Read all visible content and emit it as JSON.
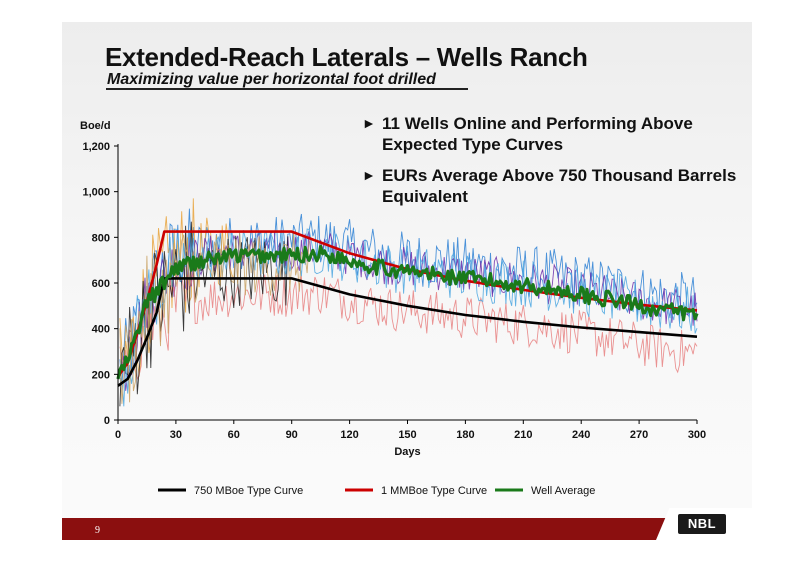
{
  "slide": {
    "title": "Extended-Reach Laterals – Wells Ranch",
    "subtitle": "Maximizing value per horizontal foot drilled",
    "bullets": [
      "11 Wells Online and Performing Above Expected Type Curves",
      "EURs Average Above 750 Thousand Barrels Equivalent"
    ],
    "bullet_marker": "►",
    "page_number": "9",
    "logo_text": "NBL",
    "colors": {
      "footer": "#8b0f0f",
      "logo": "#1a1a1a"
    }
  },
  "chart_data": {
    "type": "line",
    "title": "",
    "xlabel": "Days",
    "ylabel": "Boe/d",
    "xlim": [
      0,
      300
    ],
    "ylim": [
      0,
      1200
    ],
    "x_ticks": [
      0,
      30,
      60,
      90,
      120,
      150,
      180,
      210,
      240,
      270,
      300
    ],
    "x_tick_labels": [
      "0",
      "30",
      "60",
      "90",
      "120",
      "150",
      "180",
      "210",
      "240",
      "270",
      "300"
    ],
    "y_ticks": [
      0,
      200,
      400,
      600,
      800,
      1000,
      1200
    ],
    "y_tick_labels": [
      "0",
      "200",
      "400",
      "600",
      "800",
      "1,000",
      "1,200"
    ],
    "grid": false,
    "legend": "bottom",
    "series": [
      {
        "name": "750 MBoe Type Curve",
        "color": "#000000",
        "points": [
          [
            0,
            150
          ],
          [
            5,
            180
          ],
          [
            10,
            260
          ],
          [
            15,
            360
          ],
          [
            20,
            470
          ],
          [
            24,
            620
          ],
          [
            90,
            620
          ],
          [
            120,
            550
          ],
          [
            150,
            500
          ],
          [
            180,
            460
          ],
          [
            210,
            430
          ],
          [
            240,
            405
          ],
          [
            270,
            385
          ],
          [
            300,
            365
          ]
        ]
      },
      {
        "name": "1 MMBoe Type Curve",
        "color": "#cc0000",
        "points": [
          [
            0,
            190
          ],
          [
            5,
            250
          ],
          [
            10,
            380
          ],
          [
            15,
            520
          ],
          [
            20,
            680
          ],
          [
            24,
            825
          ],
          [
            90,
            825
          ],
          [
            120,
            730
          ],
          [
            150,
            660
          ],
          [
            180,
            610
          ],
          [
            210,
            570
          ],
          [
            240,
            535
          ],
          [
            270,
            505
          ],
          [
            300,
            480
          ]
        ]
      },
      {
        "name": "Well Average",
        "color": "#1a7a1a",
        "points": [
          [
            0,
            190
          ],
          [
            5,
            260
          ],
          [
            10,
            380
          ],
          [
            15,
            520
          ],
          [
            20,
            560
          ],
          [
            30,
            670
          ],
          [
            45,
            700
          ],
          [
            60,
            720
          ],
          [
            75,
            720
          ],
          [
            90,
            720
          ],
          [
            105,
            730
          ],
          [
            120,
            700
          ],
          [
            140,
            660
          ],
          [
            160,
            640
          ],
          [
            180,
            620
          ],
          [
            200,
            600
          ],
          [
            220,
            580
          ],
          [
            240,
            550
          ],
          [
            260,
            520
          ],
          [
            280,
            485
          ],
          [
            300,
            460
          ]
        ]
      }
    ],
    "background_traces": {
      "description_note": "",
      "colors": [
        "#2a7fd4",
        "#e8a23a",
        "#6a2aa8",
        "#e88080",
        "#1a1a1a",
        "#4aa6e0",
        "#c8a060"
      ]
    }
  }
}
